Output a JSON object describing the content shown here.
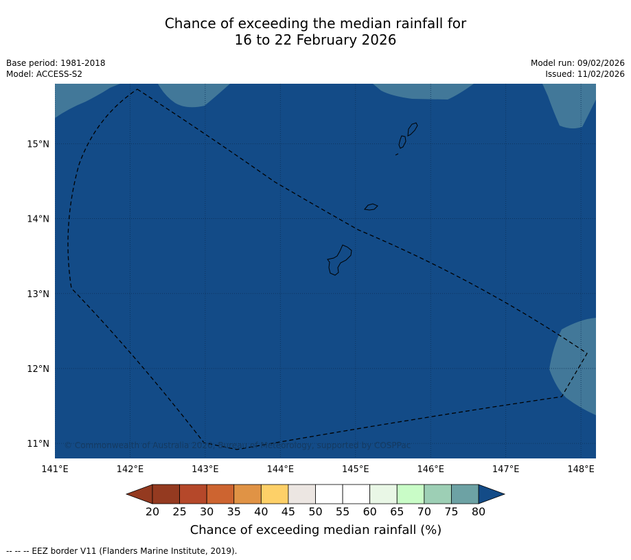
{
  "title": {
    "line1": "Chance of exceeding the median rainfall for",
    "line2": "16 to 22 February 2026"
  },
  "meta_left": [
    "Base period: 1981-2018",
    "Model: ACCESS-S2"
  ],
  "meta_right": [
    "Model run: 09/02/2026",
    "Issued: 11/02/2026"
  ],
  "map": {
    "lon_range": [
      141,
      148.2
    ],
    "lat_range": [
      10.8,
      15.8
    ],
    "lon_ticks": [
      "141°E",
      "142°E",
      "143°E",
      "144°E",
      "145°E",
      "146°E",
      "147°E",
      "148°E"
    ],
    "lat_ticks": [
      "15°N",
      "14°N",
      "13°N",
      "12°N",
      "11°N"
    ],
    "background_category": "80+",
    "background_color": "#134b87",
    "region_70_75_color": "#427899",
    "copyright": "© Commonwealth of Australia 2026, Bureau of Meteorology, supported by COSPPac"
  },
  "colorbar": {
    "ticks": [
      "20",
      "25",
      "30",
      "35",
      "40",
      "45",
      "50",
      "55",
      "60",
      "65",
      "70",
      "75",
      "80"
    ],
    "colors": [
      "#943a20",
      "#b5482a",
      "#cd6430",
      "#e09345",
      "#fdd068",
      "#ece6e2",
      "#ffffff",
      "#ffffff",
      "#e9f7e6",
      "#c9fcc7",
      "#9dcfb5",
      "#6da2a4",
      "#427899"
    ],
    "under_color": "#943a20",
    "over_color": "#134b87",
    "label": "Chance of exceeding median rainfall (%)"
  },
  "footnote": "--  --  -- EEZ border V11 (Flanders Marine Institute, 2019)."
}
